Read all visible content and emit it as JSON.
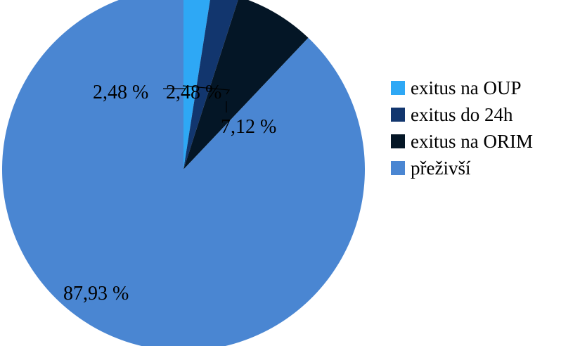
{
  "chart_data": {
    "type": "pie",
    "title": "",
    "start_angle_deg": 0,
    "direction": "clockwise",
    "categories": [
      "exitus na OUP",
      "exitus do 24h",
      "exitus na ORIM",
      "přeživší"
    ],
    "values": [
      2.48,
      2.48,
      7.12,
      87.93
    ],
    "labels": [
      "2,48 %",
      "2,48 %",
      "7,12 %",
      "87,93 %"
    ],
    "colors": [
      "#2EA8F5",
      "#12366E",
      "#041626",
      "#4A86D2"
    ],
    "legend_placement": "right"
  }
}
